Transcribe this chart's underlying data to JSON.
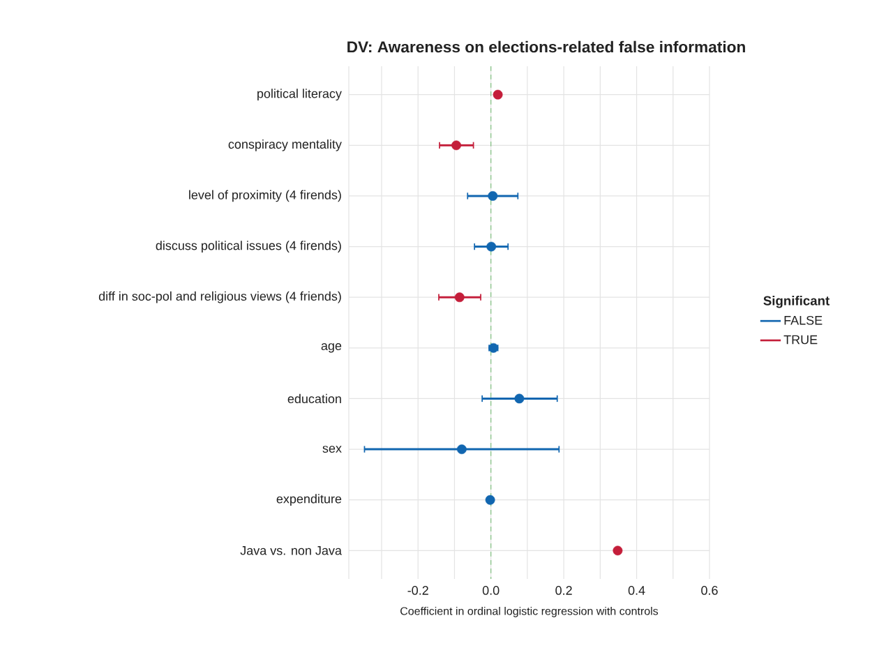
{
  "chart_data": {
    "type": "scatter",
    "orientation": "horizontal",
    "title": "DV: Awareness on elections-related false information",
    "xlabel": "Coefficient in ordinal logistic regression with controls",
    "legend_title": "Significant",
    "categories": [
      "political literacy",
      "conspiracy mentality",
      "level of proximity (4 firends)",
      "discuss political issues (4 firends)",
      "diff in soc-pol and religious views (4 friends)",
      "age",
      "education",
      "sex",
      "expenditure",
      "Java vs. non Java"
    ],
    "series": [
      {
        "name": "FALSE",
        "color": "#1166b0",
        "values": [
          null,
          null,
          0.005,
          0.001,
          null,
          0.007,
          0.078,
          -0.08,
          -0.002,
          null
        ],
        "errors": [
          null,
          null,
          [
            -0.064,
            0.074
          ],
          [
            -0.045,
            0.047
          ],
          null,
          [
            -0.005,
            0.019
          ],
          [
            -0.024,
            0.182
          ],
          [
            -0.347,
            0.187
          ],
          null,
          null
        ]
      },
      {
        "name": "TRUE",
        "color": "#c41e3a",
        "values": [
          0.019,
          -0.095,
          null,
          null,
          -0.086,
          null,
          null,
          null,
          null,
          0.348
        ],
        "errors": [
          null,
          [
            -0.141,
            -0.048
          ],
          null,
          null,
          [
            -0.143,
            -0.028
          ],
          null,
          null,
          null,
          null,
          null
        ]
      }
    ],
    "xlim": [
      -0.39,
      0.6
    ],
    "xticks": [
      {
        "value": -0.3,
        "label": null
      },
      -0.2,
      {
        "value": -0.1,
        "label": null
      },
      {
        "value": 0,
        "label": "0.0"
      },
      {
        "value": 0.1,
        "label": null
      },
      0.2,
      {
        "value": 0.3,
        "label": null
      },
      0.4,
      {
        "value": 0.5,
        "label": null
      },
      0.6
    ],
    "ref_lines": [
      {
        "axis": "x",
        "value": 0,
        "color": "#7fbf7f",
        "line_style": "dashed"
      }
    ],
    "grid": true,
    "legend": "right",
    "marker": "circle"
  }
}
